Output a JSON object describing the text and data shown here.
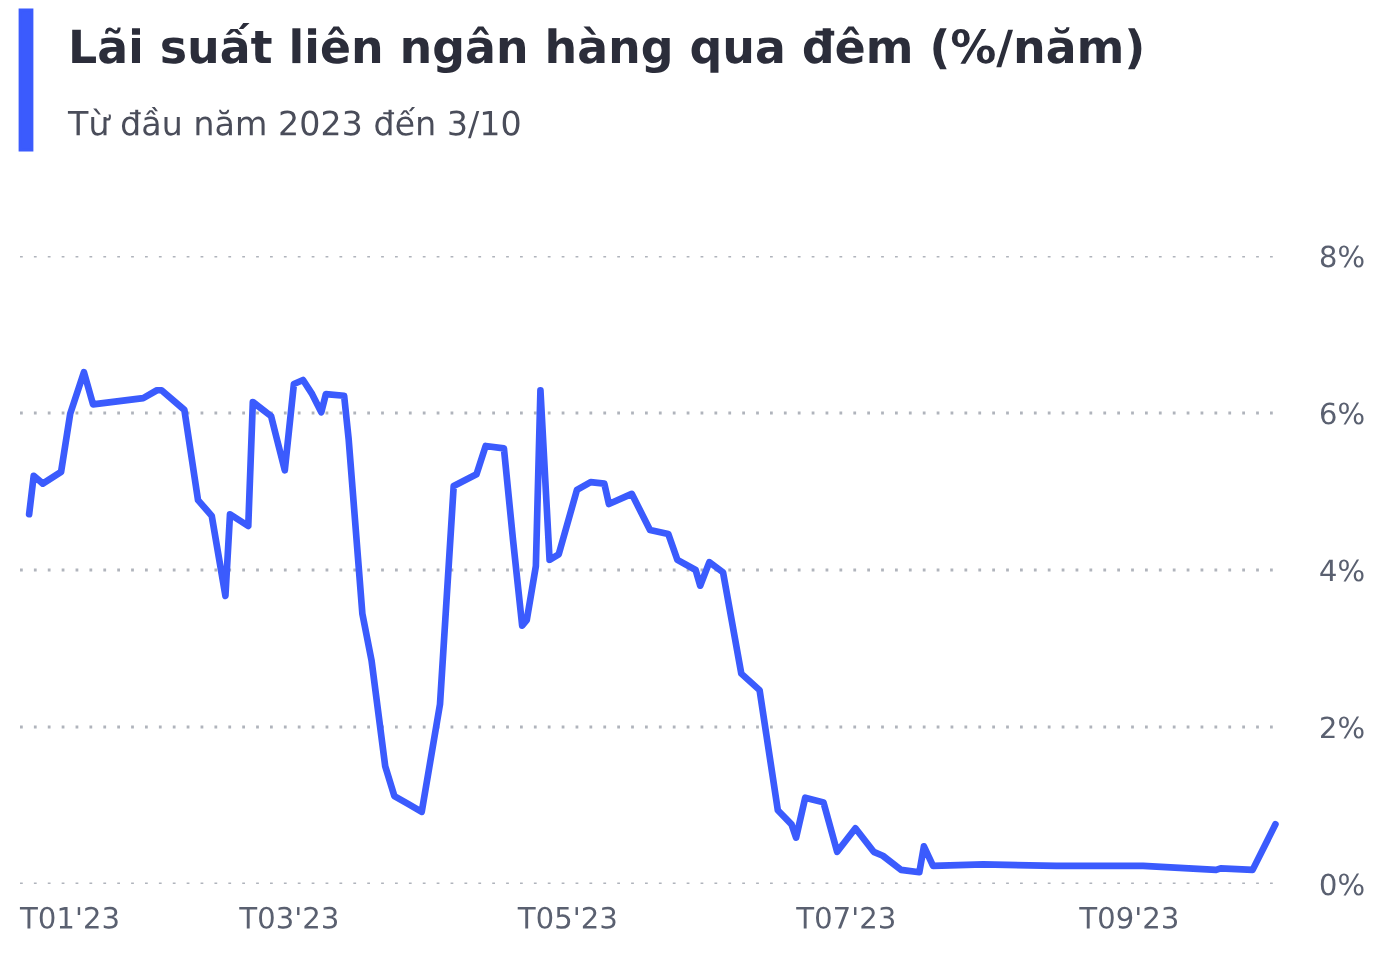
{
  "chart_data": {
    "type": "line",
    "title": "Lãi suất liên ngân hàng qua đêm (%/năm)",
    "subtitle": "Từ đầu năm 2023 đến 3/10",
    "x": [
      "2023-01-03",
      "2023-01-04",
      "2023-01-06",
      "2023-01-10",
      "2023-01-12",
      "2023-01-15",
      "2023-01-17",
      "2023-01-28",
      "2023-01-31",
      "2023-02-01",
      "2023-02-06",
      "2023-02-09",
      "2023-02-12",
      "2023-02-15",
      "2023-02-16",
      "2023-02-20",
      "2023-02-21",
      "2023-02-25",
      "2023-02-26",
      "2023-02-28",
      "2023-03-02",
      "2023-03-04",
      "2023-03-06",
      "2023-03-08",
      "2023-03-09",
      "2023-03-13",
      "2023-03-14",
      "2023-03-17",
      "2023-03-19",
      "2023-03-22",
      "2023-03-24",
      "2023-03-27",
      "2023-03-30",
      "2023-04-03",
      "2023-04-06",
      "2023-04-11",
      "2023-04-13",
      "2023-04-17",
      "2023-04-19",
      "2023-04-21",
      "2023-04-22",
      "2023-04-24",
      "2023-04-25",
      "2023-04-27",
      "2023-04-29",
      "2023-05-03",
      "2023-05-06",
      "2023-05-09",
      "2023-05-10",
      "2023-05-15",
      "2023-05-19",
      "2023-05-23",
      "2023-05-25",
      "2023-05-29",
      "2023-05-30",
      "2023-06-01",
      "2023-06-04",
      "2023-06-08",
      "2023-06-12",
      "2023-06-16",
      "2023-06-19",
      "2023-06-20",
      "2023-06-22",
      "2023-06-26",
      "2023-06-29",
      "2023-07-03",
      "2023-07-07",
      "2023-07-09",
      "2023-07-13",
      "2023-07-17",
      "2023-07-18",
      "2023-07-20",
      "2023-07-31",
      "2023-08-16",
      "2023-09-04",
      "2023-09-20",
      "2023-09-21",
      "2023-09-28",
      "2023-10-03"
    ],
    "series": [
      {
        "color": "#3b5bfd",
        "values": [
          4.71,
          5.2,
          5.1,
          5.25,
          5.99,
          6.52,
          6.11,
          6.19,
          6.29,
          6.29,
          6.04,
          4.89,
          4.69,
          3.67,
          4.71,
          4.56,
          6.14,
          5.96,
          5.73,
          5.27,
          6.37,
          6.42,
          6.24,
          6.01,
          6.24,
          6.22,
          5.66,
          3.44,
          2.85,
          1.5,
          1.12,
          1.02,
          0.92,
          2.29,
          5.07,
          5.22,
          5.58,
          5.55,
          4.38,
          3.29,
          3.36,
          4.05,
          6.29,
          4.13,
          4.2,
          5.02,
          5.12,
          5.1,
          4.84,
          4.97,
          4.51,
          4.46,
          4.13,
          4.0,
          3.8,
          4.1,
          3.97,
          2.68,
          2.47,
          0.94,
          0.76,
          0.59,
          1.1,
          1.04,
          0.41,
          0.71,
          0.41,
          0.36,
          0.18,
          0.15,
          0.48,
          0.23,
          0.25,
          0.23,
          0.23,
          0.18,
          0.2,
          0.18,
          0.76
        ]
      }
    ],
    "xlim": [
      "2023-01-01",
      "2023-10-04"
    ],
    "xticks": [
      {
        "value": "2023-01-01",
        "label": "T01'23"
      },
      {
        "value": "2023-03-01",
        "label": "T03'23"
      },
      {
        "value": "2023-05-01",
        "label": "T05'23"
      },
      {
        "value": "2023-07-01",
        "label": "T07'23"
      },
      {
        "value": "2023-09-01",
        "label": "T09'23"
      }
    ],
    "ylim": [
      0,
      8
    ],
    "yticks": [
      {
        "value": 0,
        "label": "0%"
      },
      {
        "value": 2,
        "label": "2%"
      },
      {
        "value": 4,
        "label": "4%"
      },
      {
        "value": 6,
        "label": "6%"
      },
      {
        "value": 8,
        "label": "8%"
      }
    ],
    "grid": "y",
    "legend": false,
    "marker": "none",
    "line_style": "solid"
  }
}
